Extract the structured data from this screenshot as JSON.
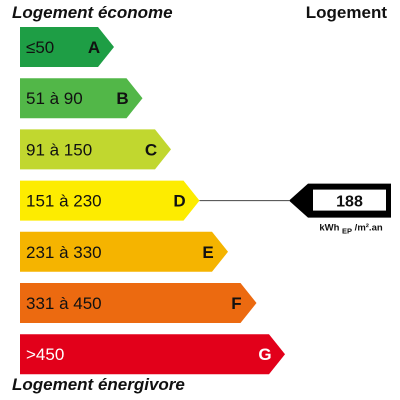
{
  "header": {
    "left_title": "Logement économe",
    "right_title": "Logement"
  },
  "footer": {
    "left_title": "Logement énergivore"
  },
  "chart_data": {
    "type": "bar",
    "categories": [
      "A",
      "B",
      "C",
      "D",
      "E",
      "F",
      "G"
    ],
    "bands": [
      {
        "range": "≤50",
        "letter": "A",
        "color": "#1e9e45",
        "text_color": "#111111"
      },
      {
        "range": "51 à 90",
        "letter": "B",
        "color": "#52b748",
        "text_color": "#111111"
      },
      {
        "range": "91 à 150",
        "letter": "C",
        "color": "#c1d72f",
        "text_color": "#111111"
      },
      {
        "range": "151 à 230",
        "letter": "D",
        "color": "#fdec00",
        "text_color": "#111111"
      },
      {
        "range": "231 à 330",
        "letter": "E",
        "color": "#f5b400",
        "text_color": "#111111"
      },
      {
        "range": "331 à 450",
        "letter": "F",
        "color": "#ec6a10",
        "text_color": "#111111"
      },
      {
        "range": ">450",
        "letter": "G",
        "color": "#e2001a",
        "text_color": "#ffffff"
      }
    ],
    "indicator": {
      "value": "188",
      "band": "D",
      "unit_main": "kWh",
      "unit_sub": "EP",
      "unit_tail": "/m².an"
    }
  }
}
